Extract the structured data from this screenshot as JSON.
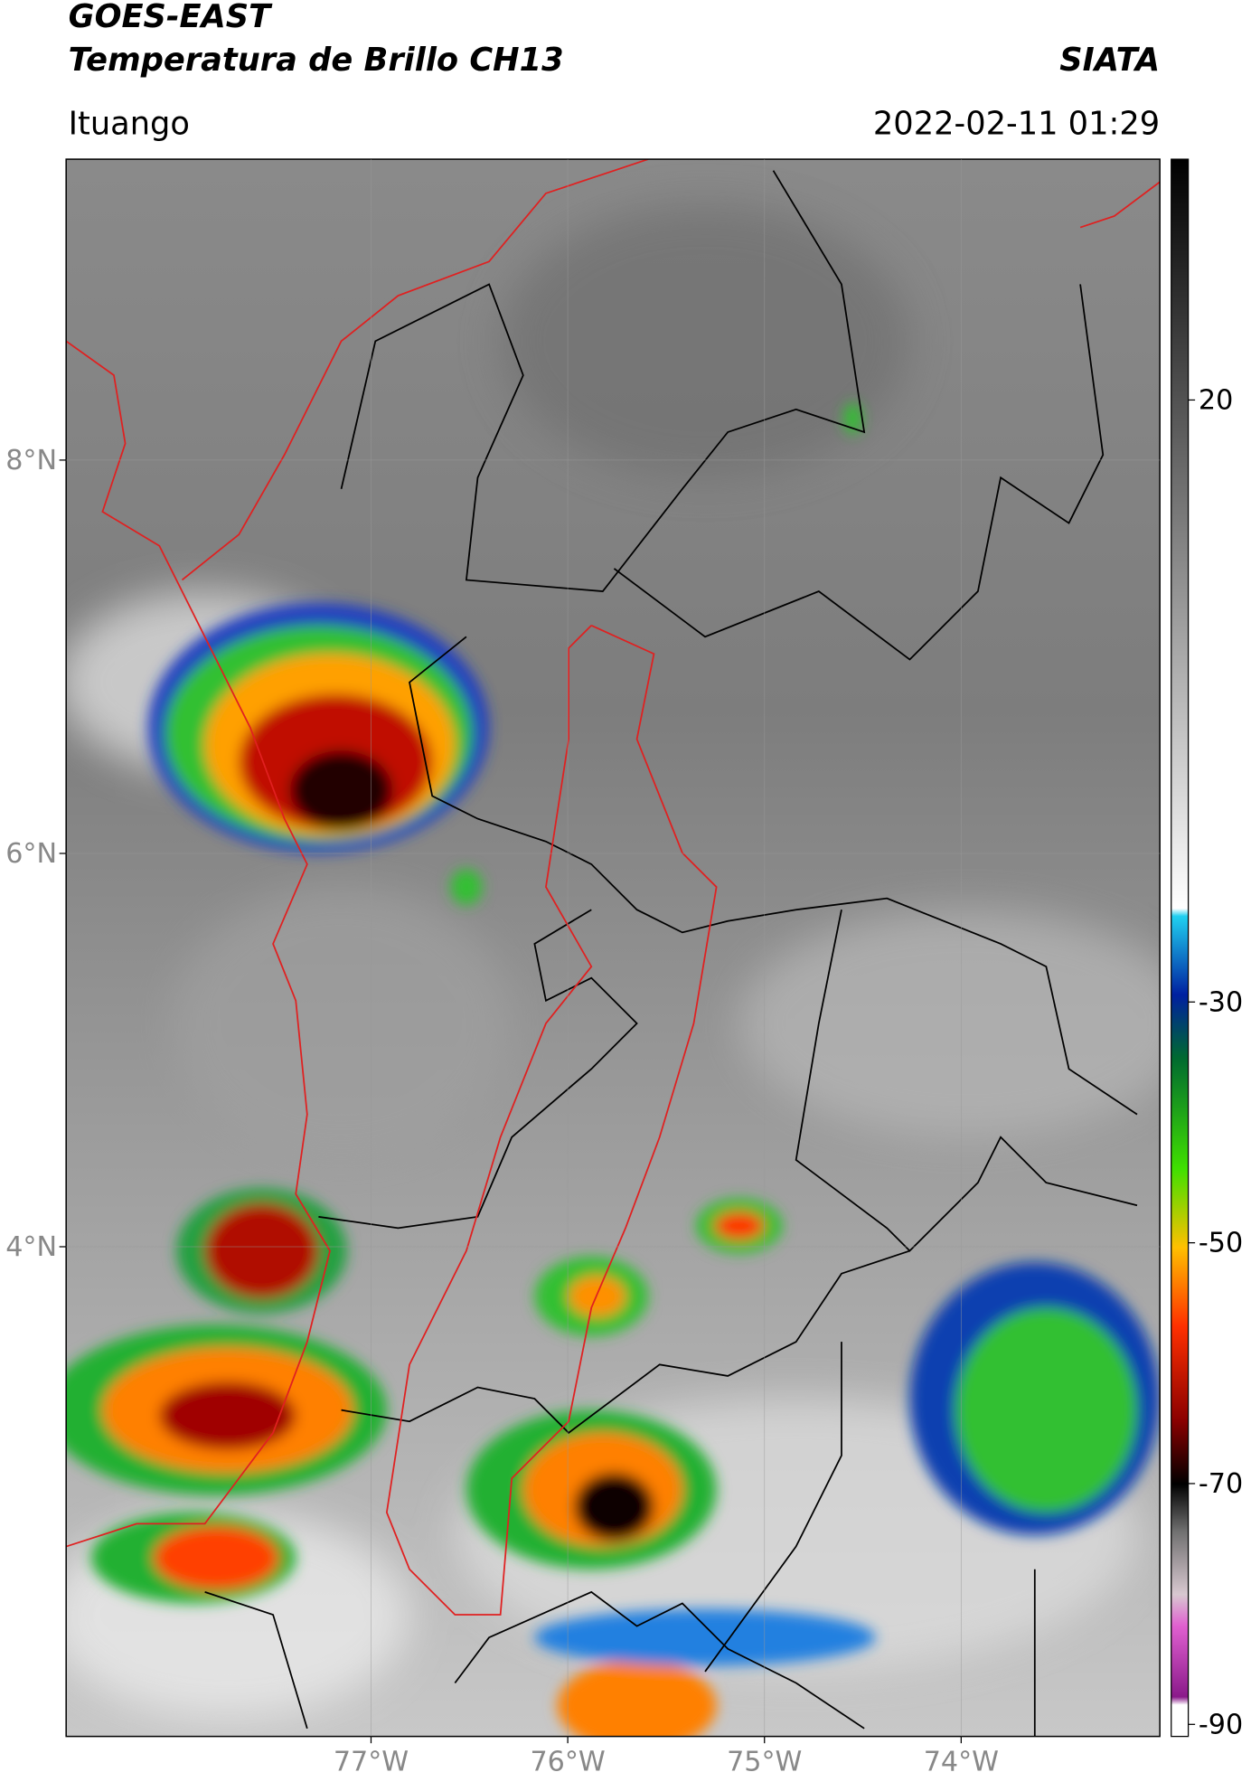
{
  "header": {
    "title_line1": "GOES-EAST",
    "title_line2": "Temperatura de Brillo CH13",
    "agency": "SIATA",
    "location": "Ituango",
    "datetime": "2022-02-11 01:29"
  },
  "map": {
    "xlim": [
      -78.55,
      -72.99
    ],
    "ylim": [
      1.51,
      9.53
    ],
    "xticks": [
      {
        "value": -77,
        "label": "77°W"
      },
      {
        "value": -76,
        "label": "76°W"
      },
      {
        "value": -75,
        "label": "75°W"
      },
      {
        "value": -74,
        "label": "74°W"
      }
    ],
    "yticks": [
      {
        "value": 4,
        "label": "4°N"
      },
      {
        "value": 6,
        "label": "6°N"
      },
      {
        "value": 8,
        "label": "8°N"
      }
    ]
  },
  "colorbar": {
    "lim": [
      -91,
      40
    ],
    "ticks": [
      -90,
      -70,
      -50,
      -30,
      20
    ]
  }
}
